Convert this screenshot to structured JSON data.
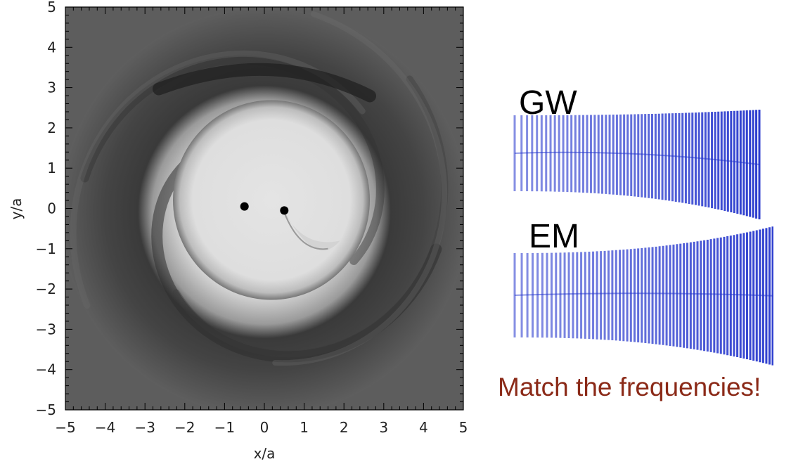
{
  "chart_data": [
    {
      "type": "heatmap",
      "xlabel": "x/a",
      "ylabel": "y/a",
      "xlim": [
        -5,
        5
      ],
      "ylim": [
        -5,
        5
      ],
      "xticks": [
        "−5",
        "−4",
        "−3",
        "−2",
        "−1",
        "0",
        "1",
        "2",
        "3",
        "4",
        "5"
      ],
      "yticks": [
        "5",
        "4",
        "3",
        "2",
        "1",
        "0",
        "−1",
        "−2",
        "−3",
        "−4",
        "−5"
      ],
      "colormap": "grayscale",
      "points": [
        {
          "x": -0.5,
          "y": 0.05
        },
        {
          "x": 0.5,
          "y": -0.05
        }
      ]
    },
    {
      "type": "line",
      "series": [
        {
          "name": "GW",
          "color": "#2233cc"
        },
        {
          "name": "EM",
          "color": "#2233cc"
        }
      ]
    }
  ],
  "caption": "Match the frequencies!"
}
